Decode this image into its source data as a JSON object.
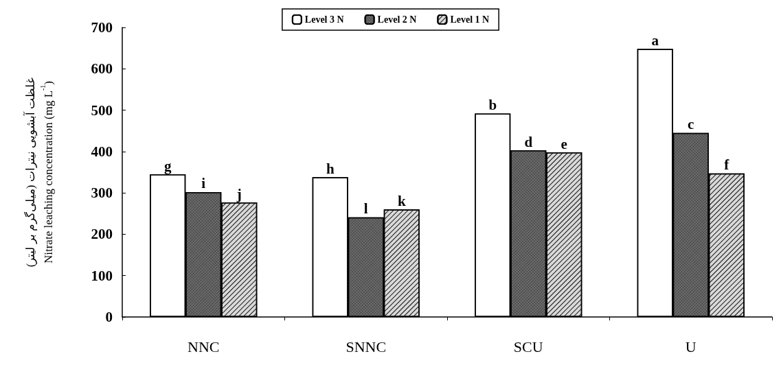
{
  "chart_data": {
    "type": "bar",
    "ylabel": "غلظت آبشویی نیترات (میلی‌گرم بر لیتر)\nNitrate leaching concentration (mg L$^{-1}$)",
    "categories": [
      "NNC",
      "SNNC",
      "SCU",
      "U"
    ],
    "series": [
      {
        "name": "Level 3 N",
        "color": "#ffffff",
        "values": [
          345,
          338,
          492,
          648
        ],
        "value_labels": [
          "g",
          "h",
          "b",
          "a"
        ]
      },
      {
        "name": "Level 2 N",
        "color": "#7a7a7a",
        "values": [
          302,
          241,
          403,
          445
        ],
        "value_labels": [
          "i",
          "l",
          "d",
          "c"
        ]
      },
      {
        "name": "Level 1 N",
        "color": "#d9d9d9",
        "values": [
          277,
          260,
          398,
          347
        ],
        "value_labels": [
          "j",
          "k",
          "e",
          "f"
        ]
      }
    ],
    "ylim": [
      0,
      700
    ],
    "yticks": [
      0,
      100,
      200,
      300,
      400,
      500,
      600,
      700
    ],
    "grid": false,
    "legend": "top"
  }
}
